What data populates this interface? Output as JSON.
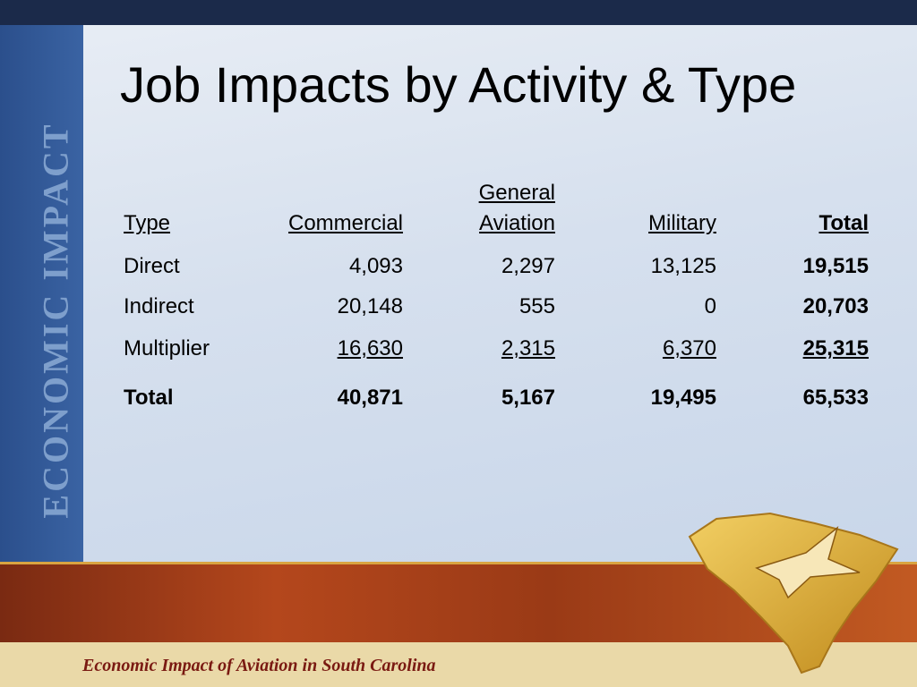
{
  "sidebar": "ECONOMIC IMPACT",
  "title": "Job Impacts by Activity & Type",
  "table": {
    "header": [
      "Type",
      "Commercial",
      "General Aviation",
      "Military",
      "Total"
    ],
    "rows": [
      [
        "Direct",
        "4,093",
        "2,297",
        "13,125",
        "19,515"
      ],
      [
        "Indirect",
        "20,148",
        "555",
        "0",
        "20,703"
      ],
      [
        "Multiplier",
        "16,630",
        "2,315",
        "6,370",
        "25,315"
      ],
      [
        "Total",
        "40,871",
        "5,167",
        "19,495",
        "65,533"
      ]
    ]
  },
  "footer": "Economic Impact of Aviation in South Carolina"
}
